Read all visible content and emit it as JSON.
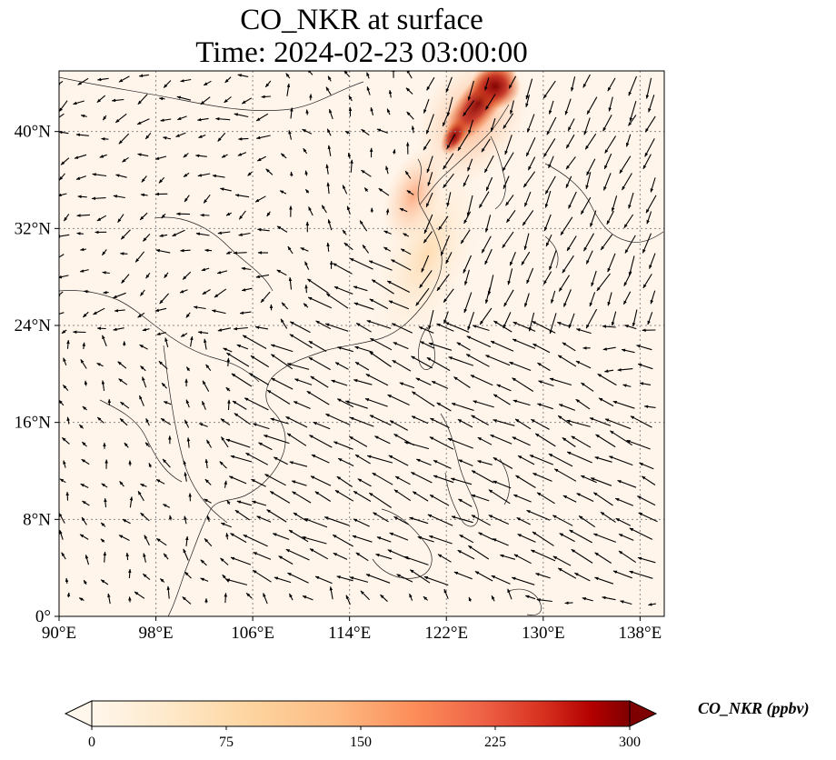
{
  "figure": {
    "title_line1": "CO_NKR at surface",
    "title_line2": "Time: 2024-02-23 03:00:00"
  },
  "map": {
    "lon_range": [
      90,
      140
    ],
    "lat_range": [
      0,
      45
    ],
    "xtick_values": [
      90,
      98,
      106,
      114,
      122,
      130,
      138
    ],
    "ytick_values": [
      0,
      8,
      16,
      24,
      32,
      40
    ],
    "xtick_labels": [
      "90°E",
      "98°E",
      "106°E",
      "114°E",
      "122°E",
      "130°E",
      "138°E"
    ],
    "ytick_labels": [
      "0°",
      "8°N",
      "16°N",
      "24°N",
      "32°N",
      "40°N"
    ],
    "gridlines": "dotted",
    "field_colors": {
      "background": "#fff5eb",
      "low": "#fdd0a2",
      "mid": "#f16913",
      "high": "#a50f15",
      "max": "#67000d"
    }
  },
  "colorbar": {
    "label": "CO_NKR (ppbv)",
    "range": [
      0,
      300
    ],
    "extend": "both",
    "tick_values": [
      0,
      75,
      150,
      225,
      300
    ],
    "tick_labels": [
      "0",
      "75",
      "150",
      "225",
      "300"
    ],
    "colormap": "OrRd"
  }
}
